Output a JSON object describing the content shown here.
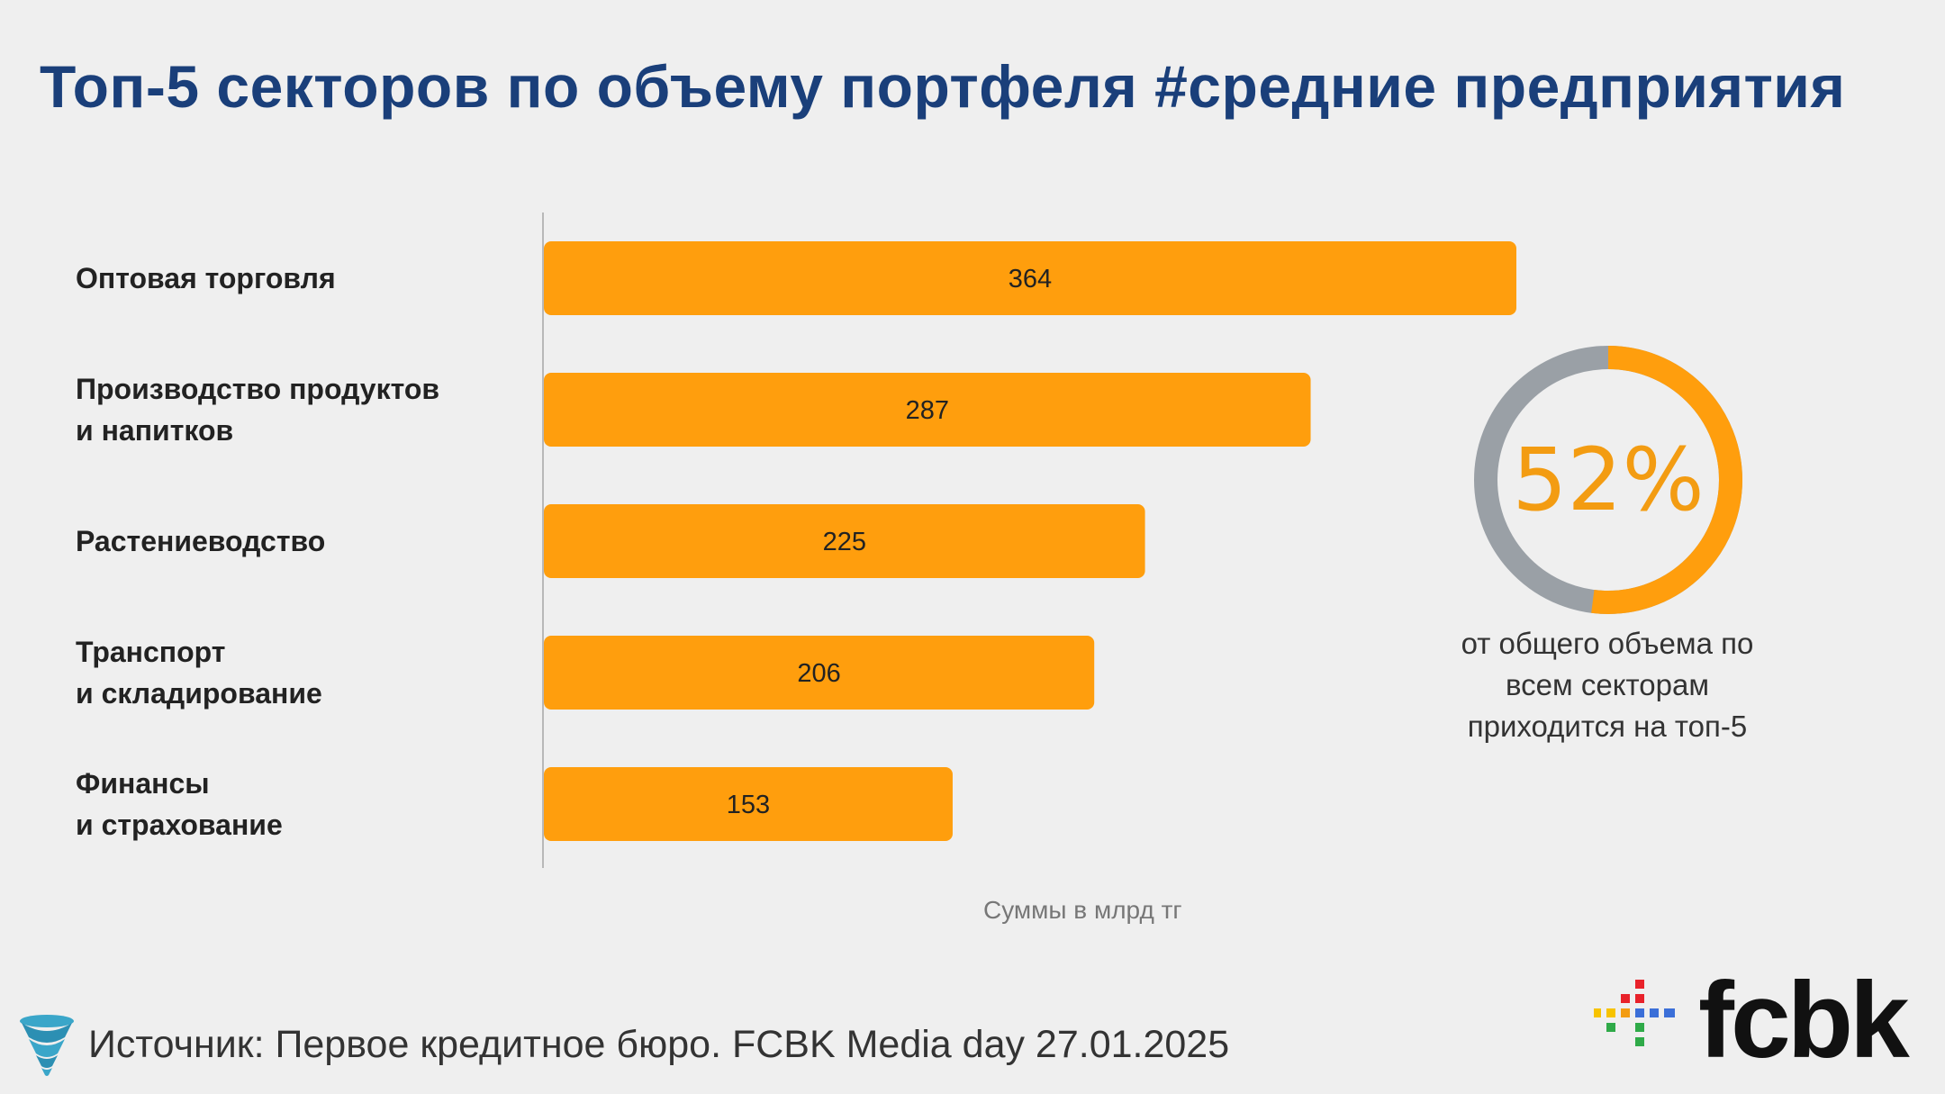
{
  "title": "Топ-5 секторов по объему портфеля #средние предприятия",
  "chart_data": {
    "type": "bar",
    "orientation": "horizontal",
    "categories": [
      [
        "Оптовая торговля"
      ],
      [
        "Производство продуктов",
        "и напитков"
      ],
      [
        "Растениеводство"
      ],
      [
        "Транспорт",
        "и складирование"
      ],
      [
        "Финансы",
        "и страхование"
      ]
    ],
    "values": [
      364,
      287,
      225,
      206,
      153
    ],
    "xlim": [
      0,
      400
    ],
    "bar_color": "#ff9e0d",
    "note": "Суммы в млрд тг"
  },
  "donut": {
    "value": "52%",
    "fraction": 0.52,
    "accent_color": "#ff9e0d",
    "rest_color": "#9aa0a6",
    "caption_lines": [
      "от общего объема по",
      "всем секторам",
      "приходится на топ-5"
    ]
  },
  "footer": {
    "source": "Источник: Первое кредитное бюро. FCBK Media day 27.01.2025",
    "source_icon": "tornado-icon",
    "logo_text": "fcbk"
  }
}
